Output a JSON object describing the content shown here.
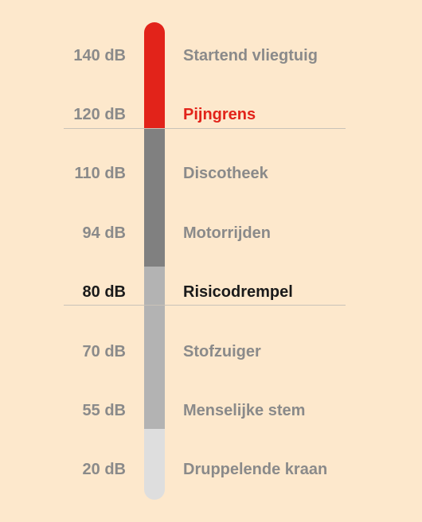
{
  "colors": {
    "background": "#fde8cc",
    "red": "#e2231a",
    "dark_gray": "#808080",
    "mid_gray": "#b3b3b3",
    "light_gray": "#dedede",
    "label_gray": "#8a8a8a",
    "label_dark": "#1a1a1a",
    "line": "#c9c2b8"
  },
  "levels": [
    {
      "db": "140 dB",
      "source": "Startend vliegtuig"
    },
    {
      "db": "120 dB",
      "source": "Pijngrens"
    },
    {
      "db": "110 dB",
      "source": "Discotheek"
    },
    {
      "db": "94 dB",
      "source": "Motorrijden"
    },
    {
      "db": "80 dB",
      "source": "Risicodrempel"
    },
    {
      "db": "70 dB",
      "source": "Stofzuiger"
    },
    {
      "db": "55 dB",
      "source": "Menselijke stem"
    },
    {
      "db": "20 dB",
      "source": "Druppelende kraan"
    }
  ]
}
